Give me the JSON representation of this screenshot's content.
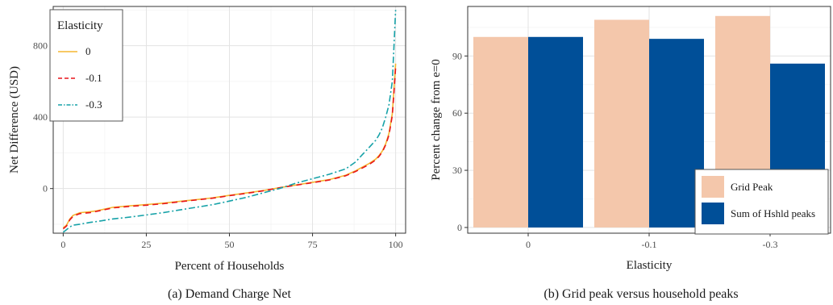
{
  "chart_data": [
    {
      "type": "line",
      "caption": "(a)  Demand Charge Net",
      "xlabel": "Percent of Households",
      "ylabel": "Net Difference (USD)",
      "xlim": [
        -3,
        103
      ],
      "ylim": [
        -250,
        1020
      ],
      "xticks": [
        0,
        25,
        50,
        75,
        100
      ],
      "yticks": [
        0,
        400,
        800
      ],
      "grid": true,
      "legend": {
        "title": "Elasticity",
        "position": "top-left"
      },
      "series": [
        {
          "name": "0",
          "color": "#f5b731",
          "dash": "solid",
          "x": [
            0,
            1,
            2,
            3,
            5,
            8,
            10,
            15,
            20,
            25,
            30,
            35,
            40,
            45,
            50,
            55,
            60,
            65,
            70,
            75,
            80,
            85,
            88,
            90,
            92,
            94,
            95,
            96,
            97,
            98,
            99,
            99.5,
            100
          ],
          "y": [
            -220,
            -205,
            -170,
            -150,
            -135,
            -130,
            -125,
            -105,
            -97,
            -90,
            -82,
            -72,
            -62,
            -52,
            -38,
            -25,
            -12,
            5,
            20,
            35,
            50,
            75,
            100,
            120,
            140,
            165,
            185,
            210,
            250,
            310,
            420,
            560,
            700
          ]
        },
        {
          "name": "-0.1",
          "color": "#e8151b",
          "dash": "7,5",
          "x": [
            0,
            1,
            2,
            3,
            5,
            8,
            10,
            15,
            20,
            25,
            30,
            35,
            40,
            45,
            50,
            55,
            60,
            65,
            70,
            75,
            80,
            85,
            88,
            90,
            92,
            94,
            95,
            96,
            97,
            98,
            99,
            99.5,
            100
          ],
          "y": [
            -225,
            -210,
            -175,
            -155,
            -140,
            -135,
            -128,
            -108,
            -100,
            -93,
            -85,
            -74,
            -64,
            -54,
            -40,
            -27,
            -13,
            4,
            19,
            33,
            48,
            72,
            96,
            115,
            135,
            160,
            180,
            205,
            245,
            300,
            410,
            540,
            680
          ]
        },
        {
          "name": "-0.3",
          "color": "#17a2a8",
          "dash": "8,3,2,3",
          "x": [
            0,
            1,
            2,
            3,
            5,
            8,
            10,
            15,
            20,
            25,
            30,
            35,
            40,
            45,
            50,
            55,
            60,
            65,
            70,
            75,
            80,
            85,
            88,
            90,
            92,
            94,
            95,
            96,
            97,
            98,
            99,
            99.5,
            100
          ],
          "y": [
            -245,
            -230,
            -215,
            -205,
            -200,
            -190,
            -185,
            -170,
            -160,
            -148,
            -135,
            -120,
            -105,
            -90,
            -70,
            -50,
            -25,
            0,
            30,
            55,
            80,
            110,
            150,
            190,
            230,
            270,
            300,
            340,
            400,
            470,
            600,
            800,
            1000
          ]
        }
      ]
    },
    {
      "type": "bar",
      "caption": "(b)  Grid peak versus household peaks",
      "xlabel": "Elasticity",
      "ylabel": "Percent change from e=0",
      "categories": [
        "0",
        "-0.1",
        "-0.3"
      ],
      "ylim": [
        -3,
        116
      ],
      "yticks": [
        0,
        30,
        60,
        90
      ],
      "grid": true,
      "legend": {
        "position": "bottom-right"
      },
      "series": [
        {
          "name": "Grid Peak",
          "color": "#f4c7ab",
          "values": [
            100,
            109,
            111
          ]
        },
        {
          "name": "Sum of Hshld peaks",
          "color": "#004f98",
          "values": [
            100,
            99,
            86
          ]
        }
      ]
    }
  ]
}
